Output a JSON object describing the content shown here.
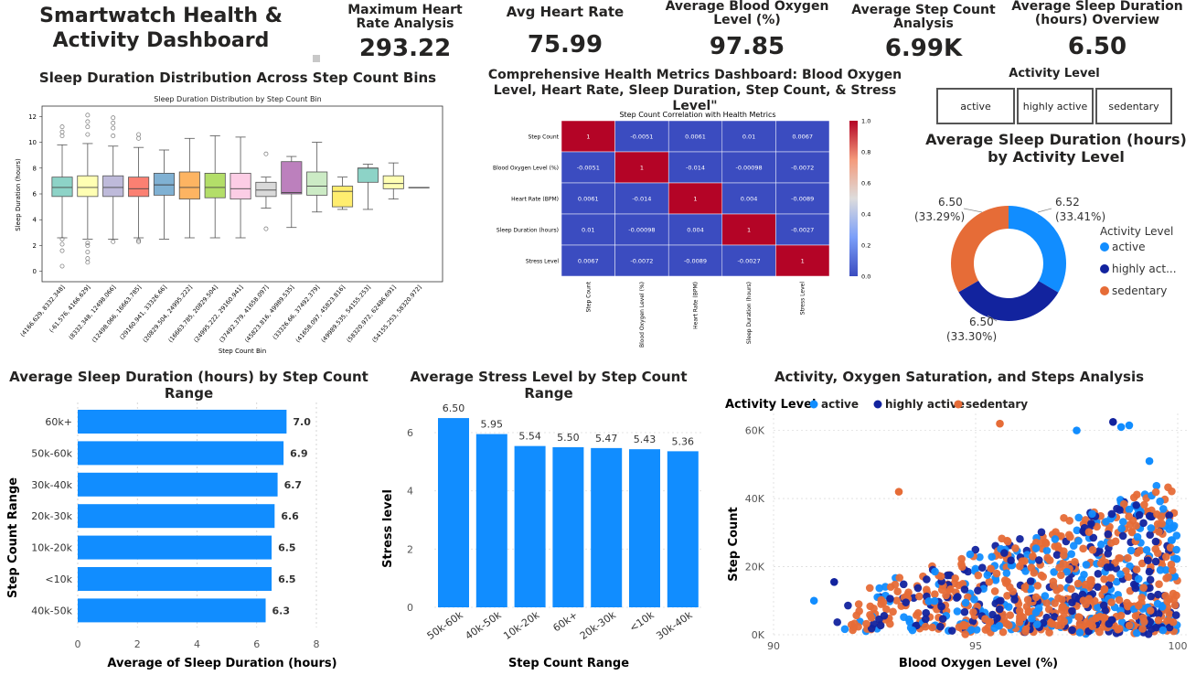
{
  "header": {
    "title": "Smartwatch Health & Activity Dashboard"
  },
  "kpis": [
    {
      "label": "Maximum Heart Rate Analysis",
      "value": "293.22"
    },
    {
      "label": "Avg Heart Rate",
      "value": "75.99"
    },
    {
      "label": "Average Blood Oxygen Level (%)",
      "value": "97.85"
    },
    {
      "label": "Average Step Count Analysis",
      "value": "6.99K"
    },
    {
      "label": "Average Sleep Duration (hours) Overview",
      "value": "6.50"
    }
  ],
  "boxplot": {
    "title": "Sleep Duration Distribution Across Step Count Bins",
    "inner_title": "Sleep Duration Distribution by Step Count Bin",
    "ylabel": "Sleep Duration (hours)",
    "xlabel": "Step Count Bin",
    "yticks": [
      "0",
      "2",
      "4",
      "6",
      "8",
      "10",
      "12"
    ],
    "bins": [
      "(4166.629, 8332.348]",
      "(-61.576, 4166.629]",
      "(8332.348, 12498.066]",
      "(12498.066, 16663.785]",
      "(29160.941, 33326.66]",
      "(20829.504, 24995.222]",
      "(16663.785, 20829.504]",
      "(24995.222, 29160.941]",
      "(37492.379, 41658.097]",
      "(45823.816, 49989.535]",
      "(33326.66, 37492.379]",
      "(41658.097, 45823.816]",
      "(49989.535, 54155.253]",
      "(58320.972, 62486.691]",
      "(54155.253, 58320.972]"
    ],
    "colors": [
      "#8dd3c7",
      "#ffffb3",
      "#bebada",
      "#fb8072",
      "#80b1d3",
      "#fdb462",
      "#b3de69",
      "#fccde5",
      "#d9d9d9",
      "#bc80bd",
      "#ccebc5",
      "#ffed6f",
      "#8dd3c7",
      "#ffffb3",
      "#bebada"
    ]
  },
  "heatmap": {
    "title": "Comprehensive Health Metrics Dashboard: Blood Oxygen Level, Heart Rate, Sleep Duration, Step Count, & Stress Level\"",
    "inner_title": "Step Count Correlation with Health Metrics",
    "labels": [
      "Step Count",
      "Blood Oxygen Level (%)",
      "Heart Rate (BPM)",
      "Sleep Duration (hours)",
      "Stress Level"
    ],
    "cells": [
      [
        "1",
        "-0.0051",
        "0.0061",
        "0.01",
        "0.0067"
      ],
      [
        "-0.0051",
        "1",
        "-0.014",
        "-0.00098",
        "-0.0072"
      ],
      [
        "0.0061",
        "-0.014",
        "1",
        "0.004",
        "-0.0089"
      ],
      [
        "0.01",
        "-0.00098",
        "0.004",
        "1",
        "-0.0027"
      ],
      [
        "0.0067",
        "-0.0072",
        "-0.0089",
        "-0.0027",
        "1"
      ]
    ],
    "colorbar_ticks": [
      "1.0",
      "0.8",
      "0.6",
      "0.4",
      "0.2",
      "0.0"
    ]
  },
  "slicer": {
    "title": "Activity Level",
    "options": [
      "active",
      "highly active",
      "sedentary"
    ]
  },
  "donut": {
    "title": "Average Sleep Duration (hours) by Activity Level",
    "legend_title": "Activity Level",
    "slices": [
      {
        "name": "active",
        "value": 6.52,
        "label": "6.52",
        "pct": "(33.41%)",
        "color": "#118dff"
      },
      {
        "name": "highly act...",
        "value": 6.5,
        "label": "6.50",
        "pct": "(33.30%)",
        "color": "#12239e"
      },
      {
        "name": "sedentary",
        "value": 6.5,
        "label": "6.50",
        "pct": "(33.29%)",
        "color": "#e66c37"
      }
    ]
  },
  "hbar": {
    "title": "Average Sleep Duration (hours) by Step Count Range",
    "ylabel": "Step Count Range",
    "xlabel": "Average of Sleep Duration (hours)",
    "xticks": [
      "0",
      "2",
      "4",
      "6",
      "8"
    ],
    "categories": [
      "60k+",
      "50k-60k",
      "30k-40k",
      "20k-30k",
      "10k-20k",
      "<10k",
      "40k-50k"
    ],
    "values": [
      7.0,
      6.9,
      6.7,
      6.6,
      6.5,
      6.5,
      6.3
    ],
    "labels": [
      "7.0",
      "6.9",
      "6.7",
      "6.6",
      "6.5",
      "6.5",
      "6.3"
    ]
  },
  "vbar": {
    "title": "Average Stress Level by Step Count Range",
    "ylabel": "Stress level",
    "xlabel": "Step Count Range",
    "yticks": [
      "0",
      "2",
      "4",
      "6"
    ],
    "categories": [
      "50k-60k",
      "40k-50k",
      "10k-20k",
      "60k+",
      "20k-30k",
      "<10k",
      "30k-40k"
    ],
    "values": [
      6.5,
      5.95,
      5.54,
      5.5,
      5.47,
      5.43,
      5.36
    ],
    "labels": [
      "6.50",
      "5.95",
      "5.54",
      "5.50",
      "5.47",
      "5.43",
      "5.36"
    ]
  },
  "scatter": {
    "title": "Activity, Oxygen Saturation, and Steps Analysis",
    "legend_title": "Activity Level",
    "legend": [
      {
        "name": "active",
        "color": "#118dff"
      },
      {
        "name": "highly active",
        "color": "#12239e"
      },
      {
        "name": "sedentary",
        "color": "#e66c37"
      }
    ],
    "ylabel": "Step Count",
    "xlabel": "Blood Oxygen Level (%)",
    "yticks": [
      "0K",
      "20K",
      "40K",
      "60K"
    ],
    "xticks": [
      "90",
      "95",
      "100"
    ]
  },
  "chart_data": [
    {
      "type": "bar",
      "title": "Average Sleep Duration (hours) by Step Count Range",
      "categories": [
        "60k+",
        "50k-60k",
        "30k-40k",
        "20k-30k",
        "10k-20k",
        "<10k",
        "40k-50k"
      ],
      "values": [
        7.0,
        6.9,
        6.7,
        6.6,
        6.5,
        6.5,
        6.3
      ],
      "xlabel": "Average of Sleep Duration (hours)",
      "ylabel": "Step Count Range",
      "xlim": [
        0,
        8
      ]
    },
    {
      "type": "bar",
      "title": "Average Stress Level by Step Count Range",
      "categories": [
        "50k-60k",
        "40k-50k",
        "10k-20k",
        "60k+",
        "20k-30k",
        "<10k",
        "30k-40k"
      ],
      "values": [
        6.5,
        5.95,
        5.54,
        5.5,
        5.47,
        5.43,
        5.36
      ],
      "xlabel": "Step Count Range",
      "ylabel": "Stress level",
      "ylim": [
        0,
        7
      ]
    },
    {
      "type": "pie",
      "title": "Average Sleep Duration (hours) by Activity Level",
      "categories": [
        "active",
        "highly active",
        "sedentary"
      ],
      "values": [
        6.52,
        6.5,
        6.5
      ]
    },
    {
      "type": "heatmap",
      "title": "Step Count Correlation with Health Metrics",
      "categories": [
        "Step Count",
        "Blood Oxygen Level (%)",
        "Heart Rate (BPM)",
        "Sleep Duration (hours)",
        "Stress Level"
      ],
      "values": [
        [
          1,
          -0.0051,
          0.0061,
          0.01,
          0.0067
        ],
        [
          -0.0051,
          1,
          -0.014,
          -0.00098,
          -0.0072
        ],
        [
          0.0061,
          -0.014,
          1,
          0.004,
          -0.0089
        ],
        [
          0.01,
          -0.00098,
          0.004,
          1,
          -0.0027
        ],
        [
          0.0067,
          -0.0072,
          -0.0089,
          -0.0027,
          1
        ]
      ]
    },
    {
      "type": "scatter",
      "title": "Activity, Oxygen Saturation, and Steps Analysis",
      "xlabel": "Blood Oxygen Level (%)",
      "ylabel": "Step Count",
      "xlim": [
        90,
        100
      ],
      "ylim": [
        0,
        65000
      ],
      "series": [
        {
          "name": "active"
        },
        {
          "name": "highly active"
        },
        {
          "name": "sedentary"
        }
      ]
    }
  ]
}
